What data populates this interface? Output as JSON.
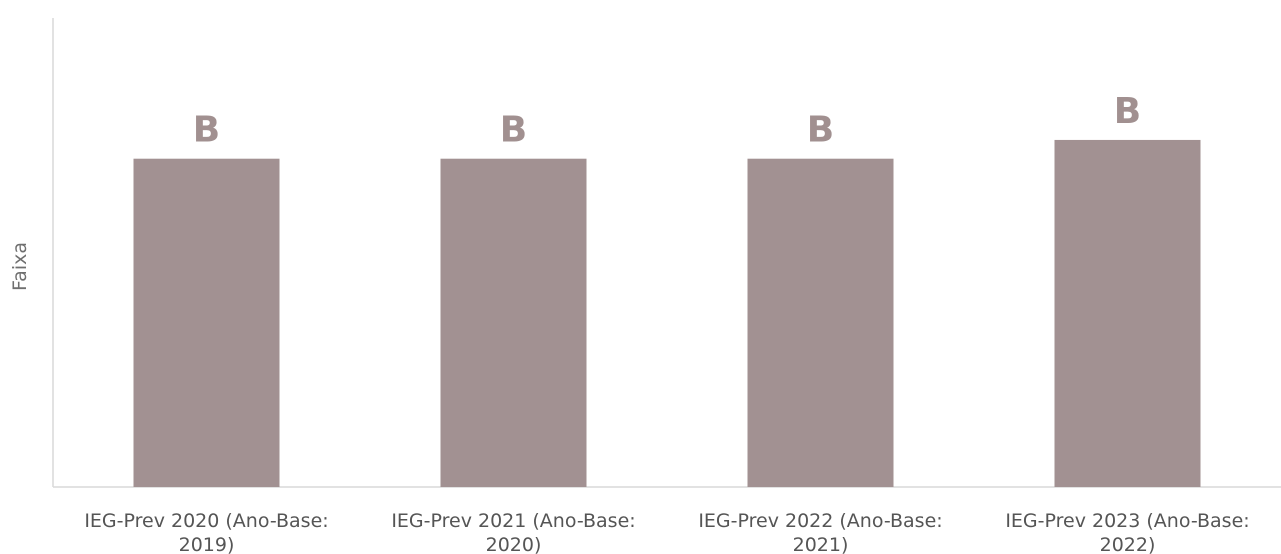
{
  "chart_data": {
    "type": "bar",
    "title": "",
    "xlabel": "",
    "ylabel": "Faixa",
    "categories": [
      [
        "IEG-Prev 2020 (Ano-Base:",
        "2019)"
      ],
      [
        "IEG-Prev 2021 (Ano-Base:",
        "2020)"
      ],
      [
        "IEG-Prev 2022 (Ano-Base:",
        "2021)"
      ],
      [
        "IEG-Prev 2023 (Ano-Base:",
        "2022)"
      ]
    ],
    "values": [
      0.7,
      0.7,
      0.7,
      0.74
    ],
    "data_labels": [
      "B",
      "B",
      "B",
      "B"
    ],
    "ylim": [
      0,
      1
    ],
    "grid": false,
    "legend": "none",
    "colors": {
      "bar": "#a29192",
      "axis": "#d9d9d9",
      "data_label": "#a19090"
    }
  }
}
